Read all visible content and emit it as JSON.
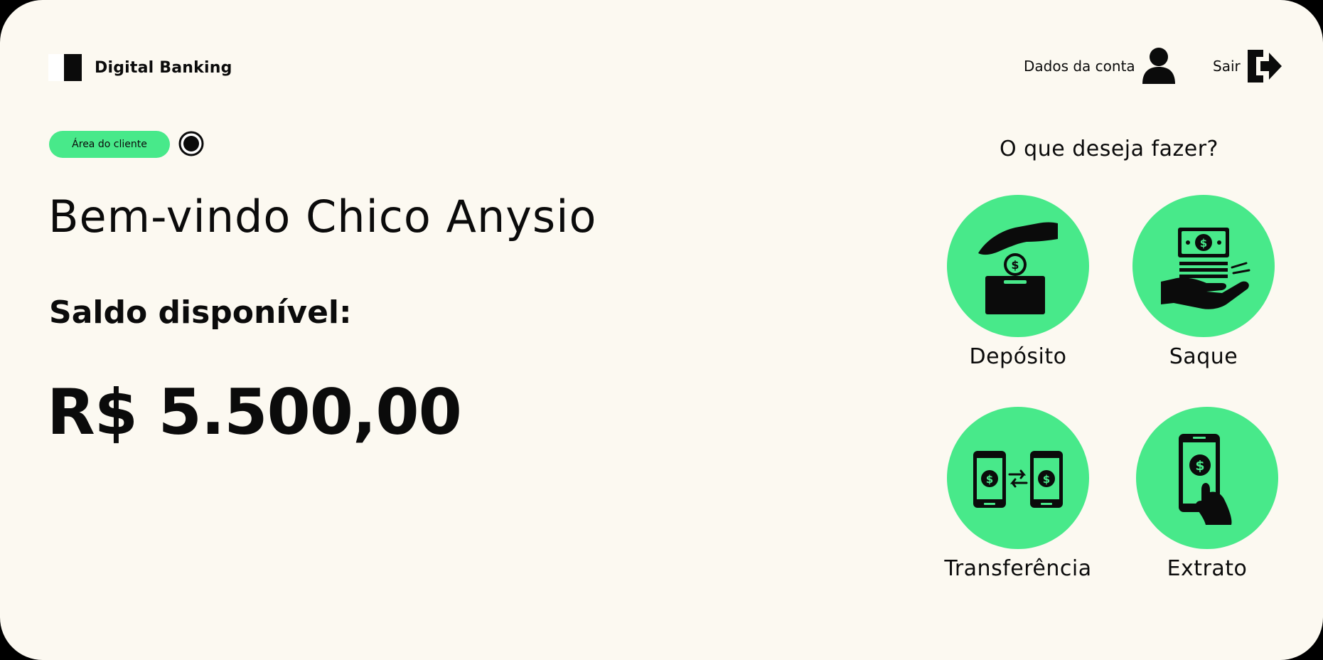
{
  "header": {
    "app_title": "Digital Banking",
    "account_label": "Dados da conta",
    "logout_label": "Sair"
  },
  "main": {
    "badge_label": "Área do cliente",
    "welcome": "Bem-vindo Chico Anysio",
    "balance_label": "Saldo disponível:",
    "balance_value": "R$ 5.500,00"
  },
  "actions": {
    "title": "O que deseja fazer?",
    "items": [
      {
        "label": "Depósito",
        "icon": "deposit-icon"
      },
      {
        "label": "Saque",
        "icon": "withdraw-icon"
      },
      {
        "label": "Transferência",
        "icon": "transfer-icon"
      },
      {
        "label": "Extrato",
        "icon": "statement-icon"
      }
    ]
  },
  "colors": {
    "background": "#fcf9f1",
    "accent": "#48e98a",
    "text": "#0b0b0b"
  }
}
